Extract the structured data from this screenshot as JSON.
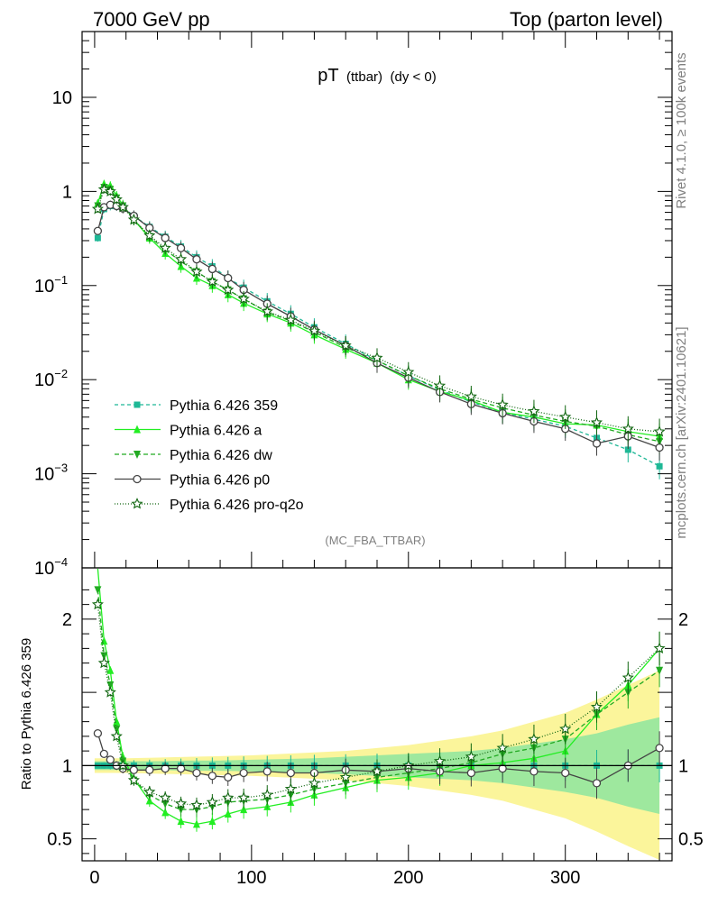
{
  "header": {
    "left": "7000 GeV pp",
    "right": "Top (parton level)"
  },
  "side": {
    "rivet": "Rivet 4.1.0, ≥ 100k events",
    "mcplots": "mcplots.cern.ch [arXiv:2401.10621]"
  },
  "plot": {
    "title_main": "pT",
    "title_sub": "(ttbar)",
    "title_cut": "(dy < 0)",
    "analysis": "(MC_FBA_TTBAR)",
    "ratio_ylabel": "Ratio to Pythia 6.426 359"
  },
  "chart_data": {
    "type": "line",
    "xlabel": "",
    "ylabel": "",
    "xlim": [
      -8,
      368
    ],
    "main": {
      "yscale": "log",
      "ylim": [
        0.0001,
        50
      ],
      "yticks": [
        {
          "v": 10,
          "label": "10"
        },
        {
          "v": 1,
          "label": "1"
        },
        {
          "v": 0.1,
          "label": "10",
          "exp": "−1"
        },
        {
          "v": 0.01,
          "label": "10",
          "exp": "−2"
        },
        {
          "v": 0.001,
          "label": "10",
          "exp": "−3"
        },
        {
          "v": 0.0001,
          "label": "10",
          "exp": "−4"
        }
      ]
    },
    "ratio": {
      "ylim": [
        0.35,
        2.35
      ],
      "yticks": [
        0.5,
        1,
        2
      ],
      "ytick_labels": [
        "0.5",
        "1",
        "2"
      ]
    },
    "xticks": [
      0,
      100,
      200,
      300
    ],
    "x": [
      2,
      6,
      10,
      14,
      18,
      25,
      35,
      45,
      55,
      65,
      75,
      85,
      95,
      110,
      125,
      140,
      160,
      180,
      200,
      220,
      240,
      260,
      280,
      300,
      320,
      340,
      360
    ],
    "series": [
      {
        "name": "Pythia 6.426 359",
        "color": "#1fb896",
        "dash": "4,3",
        "marker": "square",
        "values": [
          0.32,
          0.65,
          0.7,
          0.7,
          0.68,
          0.55,
          0.42,
          0.33,
          0.26,
          0.2,
          0.16,
          0.12,
          0.095,
          0.068,
          0.05,
          0.036,
          0.024,
          0.016,
          0.011,
          0.0078,
          0.0058,
          0.0045,
          0.0038,
          0.0032,
          0.0024,
          0.0018,
          0.0012
        ],
        "ratio": [
          1,
          1,
          1,
          1,
          1,
          1,
          1,
          1,
          1,
          1,
          1,
          1,
          1,
          1,
          1,
          1,
          1,
          1,
          1,
          1,
          1,
          1,
          1,
          1,
          1,
          1,
          1
        ]
      },
      {
        "name": "Pythia 6.426 a",
        "color": "#22ee22",
        "dash": "",
        "marker": "triangle-up",
        "values": [
          0.75,
          1.2,
          1.15,
          0.9,
          0.72,
          0.5,
          0.32,
          0.22,
          0.16,
          0.12,
          0.1,
          0.08,
          0.065,
          0.05,
          0.04,
          0.03,
          0.021,
          0.015,
          0.01,
          0.0075,
          0.006,
          0.0045,
          0.004,
          0.0034,
          0.0033,
          0.0028,
          0.0025
        ],
        "ratio": [
          2.35,
          1.85,
          1.65,
          1.3,
          1.06,
          0.91,
          0.76,
          0.68,
          0.62,
          0.6,
          0.62,
          0.67,
          0.7,
          0.72,
          0.75,
          0.8,
          0.85,
          0.9,
          0.92,
          0.95,
          1.0,
          1.02,
          1.05,
          1.1,
          1.35,
          1.55,
          1.8
        ]
      },
      {
        "name": "Pythia 6.426 dw",
        "color": "#22aa22",
        "dash": "5,3",
        "marker": "triangle-down",
        "values": [
          0.7,
          1.1,
          1.05,
          0.85,
          0.7,
          0.5,
          0.33,
          0.24,
          0.18,
          0.14,
          0.11,
          0.09,
          0.072,
          0.052,
          0.042,
          0.032,
          0.022,
          0.016,
          0.011,
          0.008,
          0.0062,
          0.005,
          0.0042,
          0.0036,
          0.0032,
          0.0026,
          0.0022
        ],
        "ratio": [
          2.2,
          1.75,
          1.55,
          1.25,
          1.03,
          0.9,
          0.8,
          0.74,
          0.7,
          0.7,
          0.72,
          0.75,
          0.76,
          0.77,
          0.8,
          0.84,
          0.88,
          0.92,
          0.95,
          0.98,
          1.02,
          1.08,
          1.12,
          1.18,
          1.35,
          1.5,
          1.65
        ]
      },
      {
        "name": "Pythia 6.426 p0",
        "color": "#444444",
        "dash": "",
        "marker": "circle-open",
        "values": [
          0.38,
          0.68,
          0.72,
          0.7,
          0.66,
          0.55,
          0.41,
          0.32,
          0.25,
          0.19,
          0.15,
          0.12,
          0.09,
          0.064,
          0.047,
          0.034,
          0.023,
          0.015,
          0.0105,
          0.0074,
          0.0055,
          0.0044,
          0.0036,
          0.003,
          0.0021,
          0.0025,
          0.0019
        ],
        "ratio": [
          1.22,
          1.08,
          1.04,
          1.0,
          0.98,
          0.97,
          0.97,
          0.98,
          0.98,
          0.95,
          0.93,
          0.92,
          0.95,
          0.96,
          0.95,
          0.95,
          0.97,
          0.96,
          0.98,
          0.96,
          0.95,
          0.98,
          0.96,
          0.95,
          0.88,
          1.0,
          1.12
        ]
      },
      {
        "name": "Pythia 6.426 pro-q2o",
        "color": "#116611",
        "dash": "1,2",
        "marker": "star-open",
        "values": [
          0.65,
          1.05,
          1.0,
          0.82,
          0.68,
          0.5,
          0.34,
          0.25,
          0.19,
          0.14,
          0.11,
          0.09,
          0.072,
          0.053,
          0.043,
          0.033,
          0.023,
          0.017,
          0.012,
          0.0086,
          0.0066,
          0.0054,
          0.0046,
          0.004,
          0.0035,
          0.003,
          0.0028
        ],
        "ratio": [
          2.1,
          1.7,
          1.5,
          1.2,
          1.0,
          0.9,
          0.82,
          0.78,
          0.74,
          0.73,
          0.75,
          0.78,
          0.78,
          0.8,
          0.84,
          0.88,
          0.92,
          0.96,
          1.0,
          1.03,
          1.06,
          1.12,
          1.18,
          1.25,
          1.4,
          1.6,
          1.8
        ]
      }
    ],
    "bands": {
      "x": [
        0,
        20,
        40,
        60,
        80,
        100,
        120,
        140,
        160,
        180,
        200,
        220,
        240,
        260,
        280,
        300,
        320,
        340,
        360
      ],
      "green_half": [
        0.03,
        0.03,
        0.03,
        0.035,
        0.035,
        0.04,
        0.045,
        0.05,
        0.06,
        0.07,
        0.08,
        0.09,
        0.1,
        0.12,
        0.15,
        0.18,
        0.22,
        0.28,
        0.33
      ],
      "yellow_half": [
        0.05,
        0.05,
        0.055,
        0.06,
        0.065,
        0.07,
        0.08,
        0.09,
        0.1,
        0.12,
        0.14,
        0.17,
        0.2,
        0.24,
        0.3,
        0.36,
        0.45,
        0.55,
        0.65
      ]
    }
  }
}
